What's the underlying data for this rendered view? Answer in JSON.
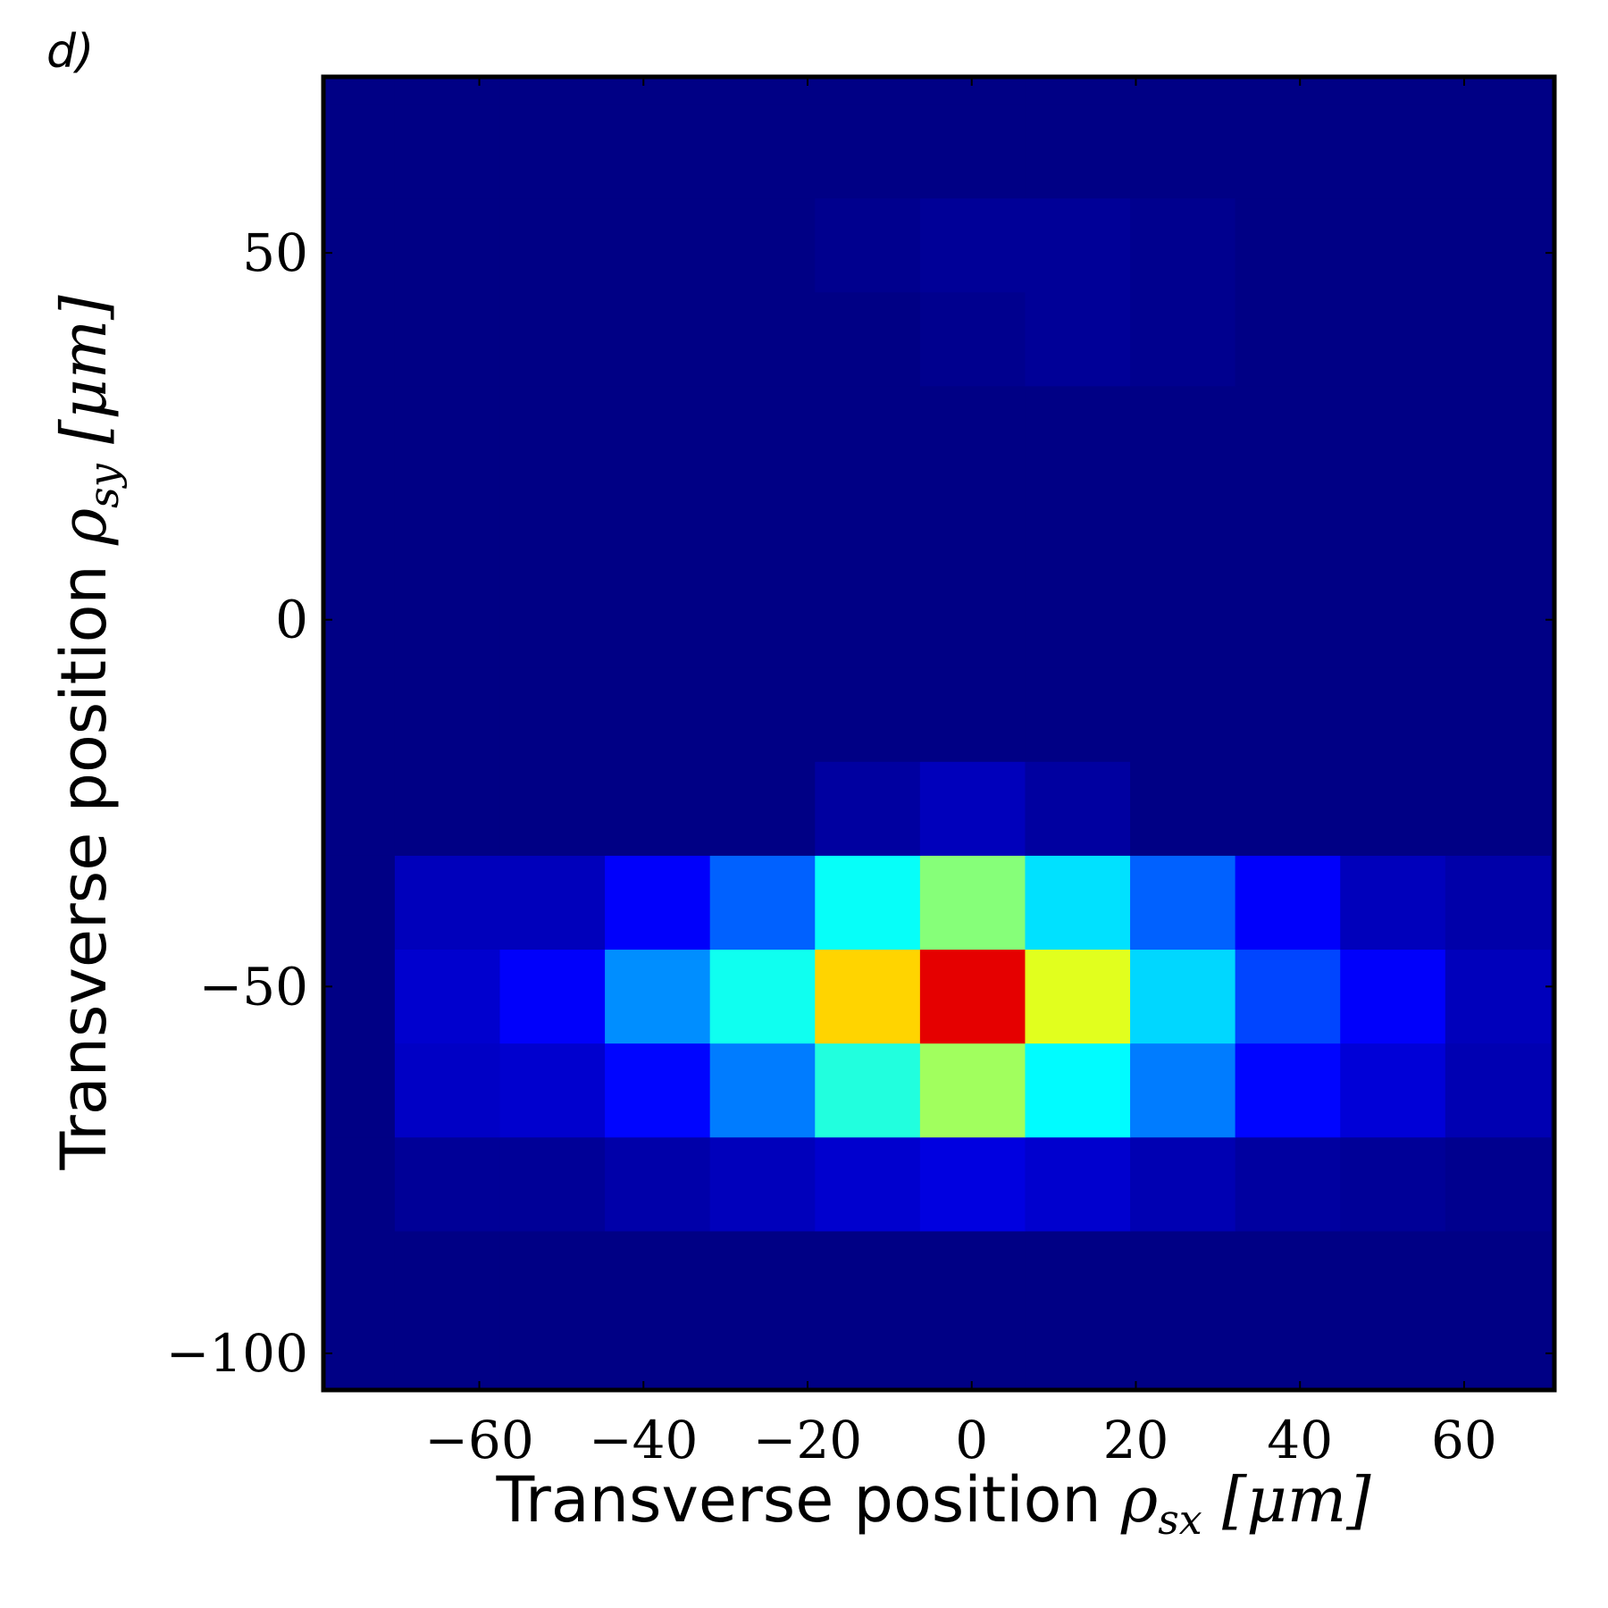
{
  "panel_label": "d)",
  "chart_data": {
    "type": "heatmap",
    "colormap": "jet",
    "background_color": "#00007f",
    "xlabel": "Transverse position ρsx [μm]",
    "ylabel": "Transverse position ρsy [μm]",
    "xlabel_parts": {
      "text": "Transverse position ",
      "symbol": "ρ",
      "subscript": "sx",
      "unit": " [μm]"
    },
    "ylabel_parts": {
      "text": "Transverse position ",
      "symbol": "ρ",
      "subscript": "sy",
      "unit": " [μm]"
    },
    "xlim": [
      -79,
      71
    ],
    "ylim": [
      -105,
      74
    ],
    "xticks": [
      -60,
      -40,
      -20,
      0,
      20,
      40,
      60
    ],
    "xtick_labels": [
      "−60",
      "−40",
      "−20",
      "0",
      "20",
      "40",
      "60"
    ],
    "yticks": [
      50,
      0,
      -50,
      -100
    ],
    "ytick_labels": [
      "50",
      "0",
      "−50",
      "−100"
    ],
    "x_bin_edges": [
      -79.3,
      -70.3,
      -57.5,
      -44.7,
      -31.9,
      -19.1,
      -6.3,
      6.5,
      19.3,
      32.1,
      44.9,
      57.7,
      70.5
    ],
    "y_bin_edges": [
      -105,
      -83.3,
      -70.5,
      -57.7,
      -44.9,
      -32.1,
      -19.3,
      -6.5,
      6.3,
      19.1,
      31.9,
      44.7,
      57.5,
      70.3,
      74
    ],
    "z": [
      [
        0.0,
        0.0,
        0.0,
        0.0,
        0.0,
        0.0,
        0.0,
        0.0,
        0.0,
        0.0,
        0.0,
        0.0
      ],
      [
        0.0,
        0.02,
        0.02,
        0.04,
        0.06,
        0.08,
        0.1,
        0.08,
        0.05,
        0.03,
        0.02,
        0.01
      ],
      [
        0.0,
        0.07,
        0.08,
        0.14,
        0.27,
        0.45,
        0.59,
        0.41,
        0.27,
        0.14,
        0.09,
        0.05
      ],
      [
        0.0,
        0.08,
        0.13,
        0.29,
        0.43,
        0.74,
        1.0,
        0.66,
        0.37,
        0.21,
        0.13,
        0.06
      ],
      [
        0.0,
        0.06,
        0.06,
        0.13,
        0.24,
        0.42,
        0.56,
        0.38,
        0.24,
        0.13,
        0.06,
        0.04
      ],
      [
        0.0,
        0.0,
        0.0,
        0.0,
        0.0,
        0.03,
        0.06,
        0.03,
        0.0,
        0.0,
        0.0,
        0.0
      ],
      [
        0.0,
        0.0,
        0.0,
        0.0,
        0.0,
        0.0,
        0.0,
        0.0,
        0.0,
        0.0,
        0.0,
        0.0
      ],
      [
        0.0,
        0.0,
        0.0,
        0.0,
        0.0,
        0.0,
        0.0,
        0.0,
        0.0,
        0.0,
        0.0,
        0.0
      ],
      [
        0.0,
        0.0,
        0.0,
        0.0,
        0.0,
        0.0,
        0.0,
        0.0,
        0.0,
        0.0,
        0.0,
        0.0
      ],
      [
        0.0,
        0.0,
        0.0,
        0.0,
        0.0,
        0.0,
        0.0,
        0.0,
        0.0,
        0.0,
        0.0,
        0.0
      ],
      [
        0.0,
        0.0,
        0.0,
        0.0,
        0.0,
        0.0,
        0.01,
        0.02,
        0.01,
        0.0,
        0.0,
        0.0
      ],
      [
        0.0,
        0.0,
        0.0,
        0.0,
        0.0,
        0.01,
        0.02,
        0.02,
        0.01,
        0.0,
        0.0,
        0.0
      ],
      [
        0.0,
        0.0,
        0.0,
        0.0,
        0.0,
        0.0,
        0.0,
        0.0,
        0.0,
        0.0,
        0.0,
        0.0
      ],
      [
        0.0,
        0.0,
        0.0,
        0.0,
        0.0,
        0.0,
        0.0,
        0.0,
        0.0,
        0.0,
        0.0,
        0.0
      ]
    ]
  }
}
